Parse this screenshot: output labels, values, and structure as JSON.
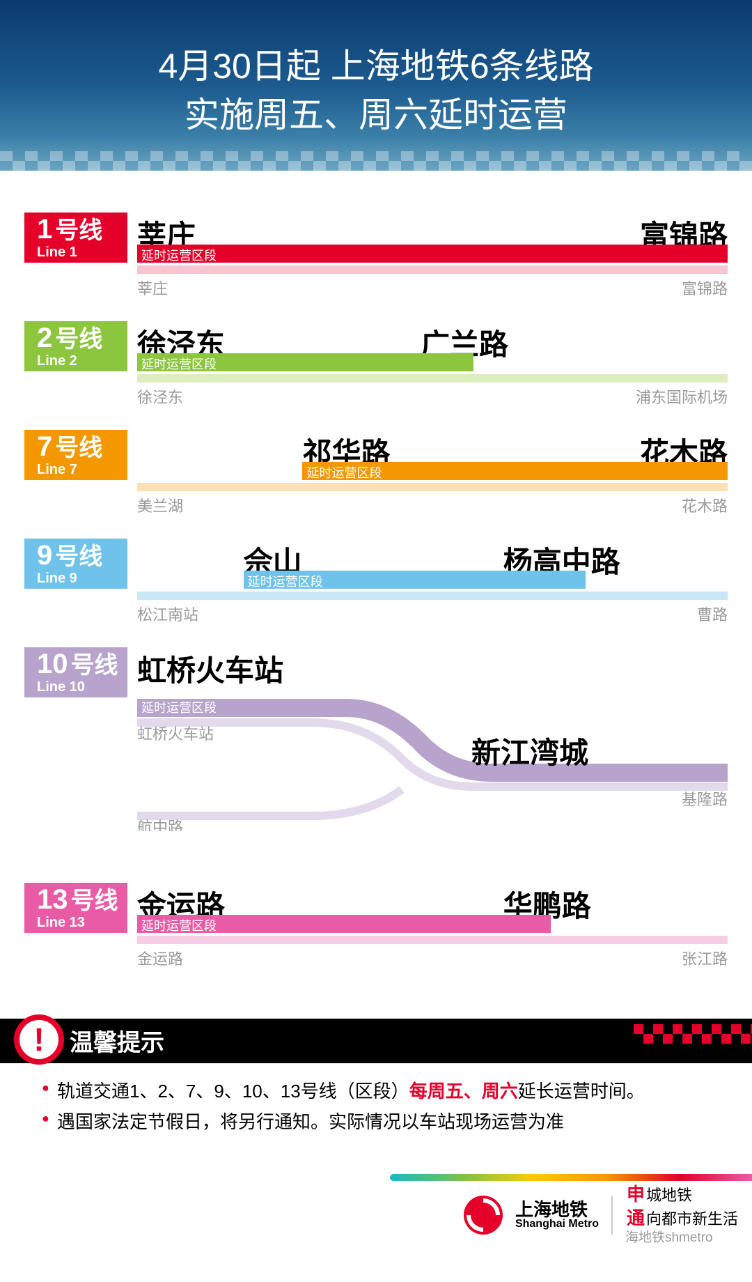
{
  "header": {
    "line1": "4月30日起  上海地铁6条线路",
    "line2": "实施周五、周六延时运营"
  },
  "ext_label": "延时运营区段",
  "lines": [
    {
      "num": "1",
      "zh_suffix": "号线",
      "en": "Line 1",
      "color": "#e5002a",
      "pale": "#f7c5cf",
      "st_a": "莘庄",
      "st_b": "富锦路",
      "full_a": "莘庄",
      "full_b": "富锦路",
      "bar_left_pct": 0,
      "bar_width_pct": 100,
      "st_a_pct": 0,
      "st_b_pct": 100,
      "st_b_align": "right"
    },
    {
      "num": "2",
      "zh_suffix": "号线",
      "en": "Line 2",
      "color": "#8cc63f",
      "pale": "#dceebd",
      "st_a": "徐泾东",
      "st_b": "广兰路",
      "full_a": "徐泾东",
      "full_b": "浦东国际机场",
      "bar_left_pct": 0,
      "bar_width_pct": 57,
      "st_a_pct": 0,
      "st_b_pct": 48,
      "st_b_align": "left"
    },
    {
      "num": "7",
      "zh_suffix": "号线",
      "en": "Line 7",
      "color": "#f39800",
      "pale": "#fbe0b3",
      "st_a": "祁华路",
      "st_b": "花木路",
      "full_a": "美兰湖",
      "full_b": "花木路",
      "bar_left_pct": 28,
      "bar_width_pct": 72,
      "st_a_pct": 28,
      "st_b_pct": 100,
      "st_b_align": "right"
    },
    {
      "num": "9",
      "zh_suffix": "号线",
      "en": "Line 9",
      "color": "#6fc2ea",
      "pale": "#c9e8f7",
      "st_a": "佘山",
      "st_b": "杨高中路",
      "full_a": "松江南站",
      "full_b": "曹路",
      "bar_left_pct": 18,
      "bar_width_pct": 58,
      "st_a_pct": 18,
      "st_b_pct": 62,
      "st_b_align": "left"
    },
    {
      "num": "10",
      "zh_suffix": "号线",
      "en": "Line 10",
      "color": "#b7a3cc",
      "pale": "#e3d9ed",
      "st_a": "虹桥火车站",
      "st_b": "新江湾城",
      "full_a": "虹桥火车站",
      "full_b": "基隆路",
      "branch_label": "航中路",
      "bar_left_pct": 0,
      "bar_width_pct": 100,
      "st_a_pct": 0,
      "st_b_pct": 58,
      "st_b_align": "left",
      "branch": true
    },
    {
      "num": "13",
      "zh_suffix": "号线",
      "en": "Line 13",
      "color": "#ea5ba5",
      "pale": "#f7cde4",
      "st_a": "金运路",
      "st_b": "华鹏路",
      "full_a": "金运路",
      "full_b": "张江路",
      "bar_left_pct": 0,
      "bar_width_pct": 70,
      "st_a_pct": 0,
      "st_b_pct": 62,
      "st_b_align": "left"
    }
  ],
  "notice": {
    "title": "温馨提示",
    "body1a": "轨道交通1、2、7、9、10、13号线（区段）",
    "body1b": "每周五、周六",
    "body1c": "延长运营时间。",
    "body2": "遇国家法定节假日，将另行通知。实际情况以车站现场运营为准"
  },
  "footer": {
    "brand_zh": "上海地铁",
    "brand_en": "Shanghai Metro",
    "s1": "申",
    "s1t": "城地铁",
    "s2": "通",
    "s2t": "向都市新生活",
    "watermark": "海地铁shmetro"
  }
}
